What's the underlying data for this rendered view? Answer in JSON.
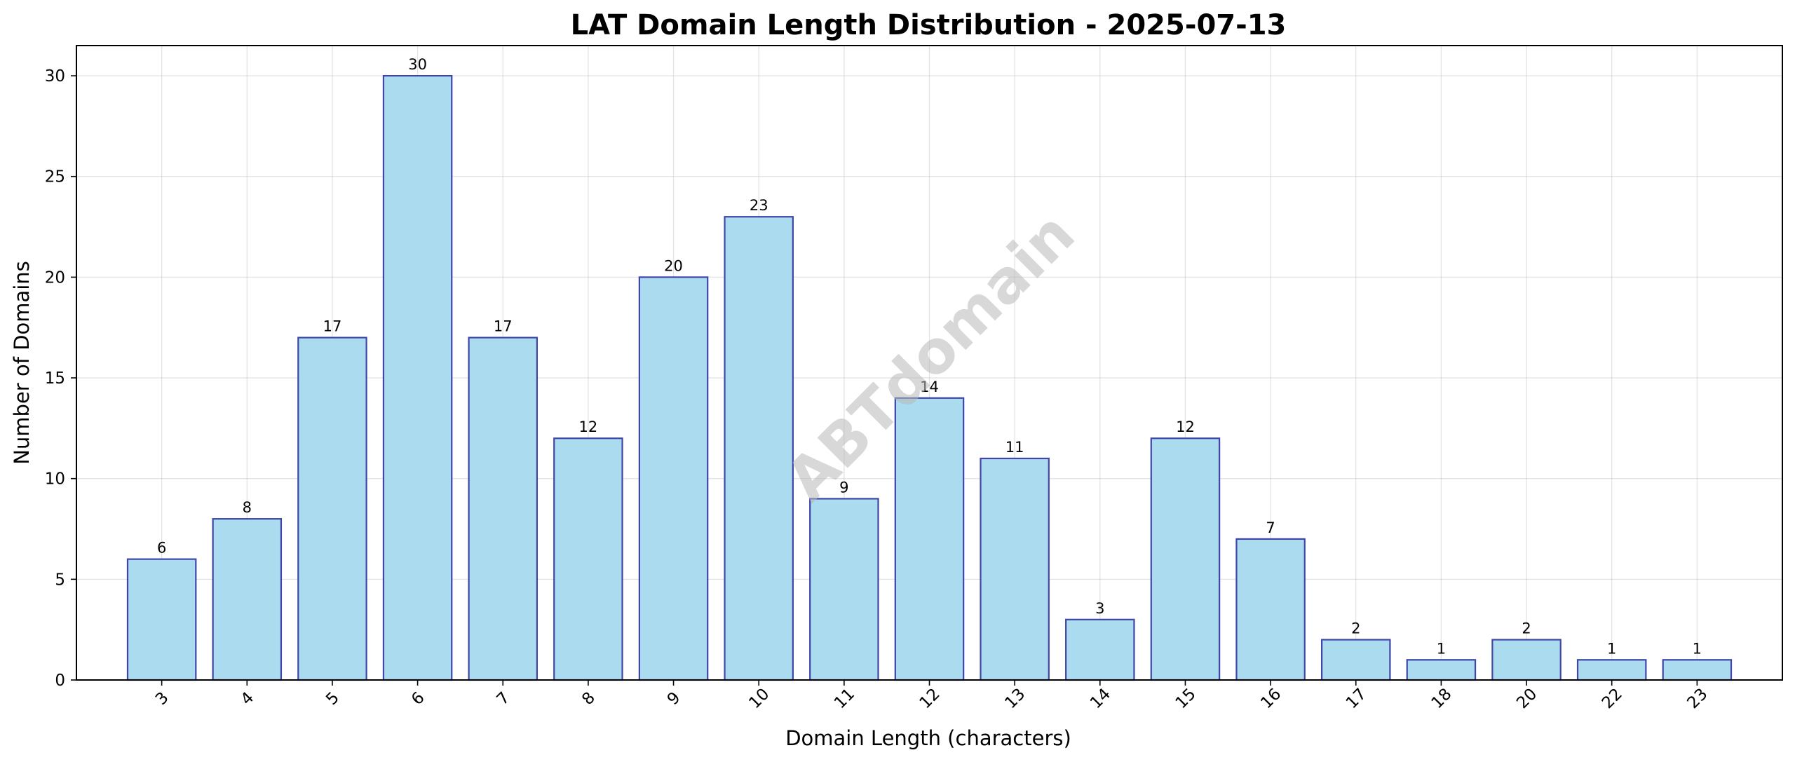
{
  "chart_data": {
    "type": "bar",
    "title": "LAT Domain Length Distribution - 2025-07-13",
    "xlabel": "Domain Length (characters)",
    "ylabel": "Number of Domains",
    "categories": [
      "3",
      "4",
      "5",
      "6",
      "7",
      "8",
      "9",
      "10",
      "11",
      "12",
      "13",
      "14",
      "15",
      "16",
      "17",
      "18",
      "20",
      "22",
      "23"
    ],
    "values": [
      6,
      8,
      17,
      30,
      17,
      12,
      20,
      23,
      9,
      14,
      11,
      3,
      12,
      7,
      2,
      1,
      2,
      1,
      1
    ],
    "ylim": [
      0,
      31.5
    ],
    "yticks": [
      "0",
      "5",
      "10",
      "15",
      "20",
      "25",
      "30"
    ],
    "grid": true,
    "x_tick_rotation": 45,
    "data_labels": true,
    "watermark": "ABTdomain",
    "colors": {
      "bar_fill": "#abdbef",
      "bar_edge": "#3f46a8",
      "grid": "#b0b0b0",
      "watermark": "#b8b8b8"
    }
  }
}
